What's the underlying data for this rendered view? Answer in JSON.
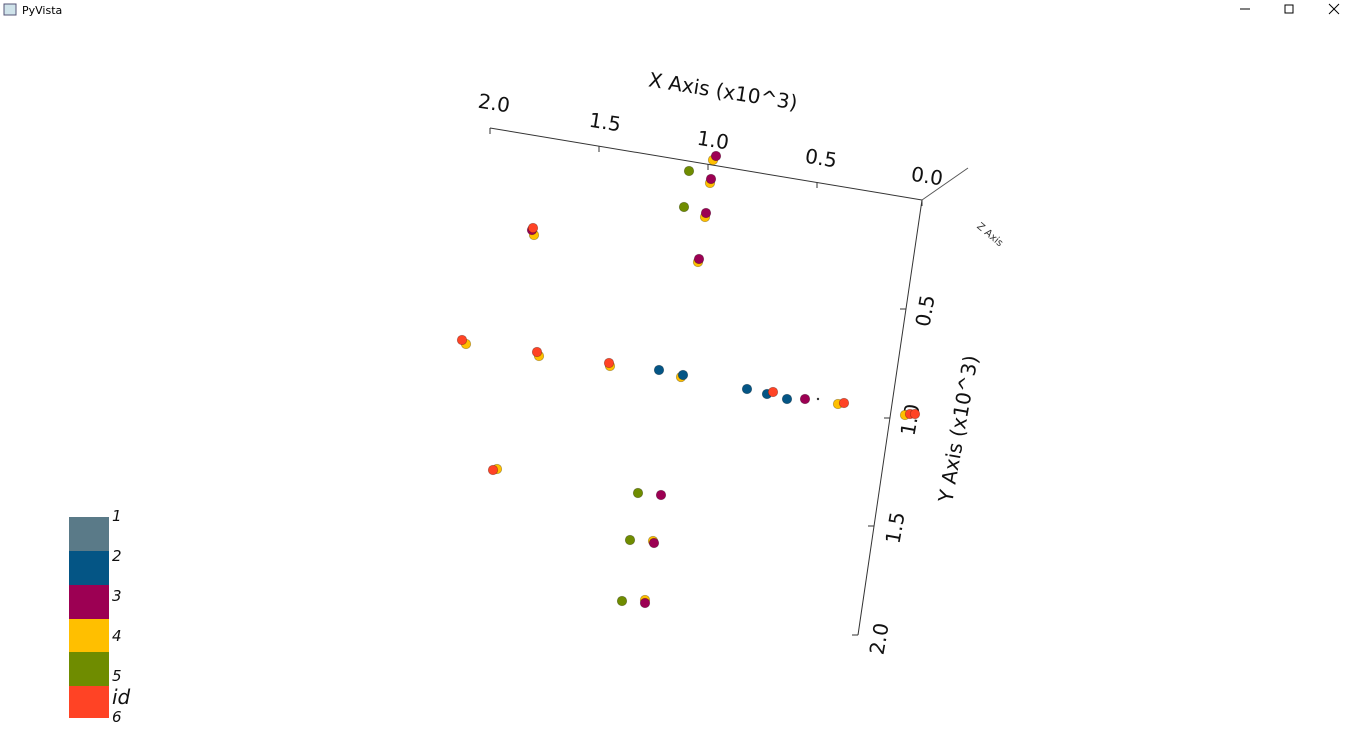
{
  "window": {
    "title": "PyVista"
  },
  "scene": {
    "x_axis": {
      "title": "X Axis (x10^3)",
      "ticks": [
        "2.0",
        "1.5",
        "1.0",
        "0.5",
        "0.0"
      ]
    },
    "y_axis": {
      "title": "Y Axis (x10^3)",
      "ticks": [
        "0.5",
        "1.0",
        "1.5",
        "2.0"
      ]
    },
    "z_axis": {
      "title": "Z Axis"
    },
    "scalar_bar": {
      "title": "id",
      "labels": [
        "1",
        "2",
        "3",
        "4",
        "5",
        "6"
      ]
    }
  }
}
